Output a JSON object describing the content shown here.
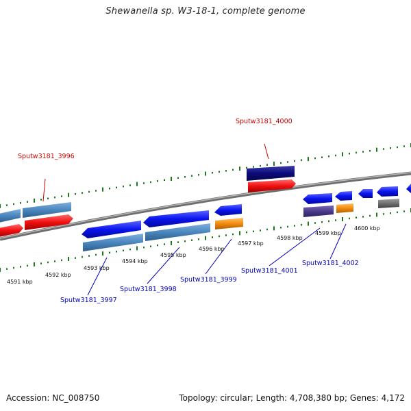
{
  "title": "Shewanella sp. W3-18-1, complete genome",
  "accession": "Accession: NC_008750",
  "topology": "Topology: circular; Length: 4,708,380 bp; Genes: 4,172",
  "kbp_labels": [
    "4591 kbp",
    "4592 kbp",
    "4593 kbp",
    "4594 kbp",
    "4595 kbp",
    "4596 kbp",
    "4597 kbp",
    "4598 kbp",
    "4599 kbp",
    "4600 kbp"
  ],
  "gene_labels": {
    "g3996": "Sputw3181_3996",
    "g3997": "Sputw3181_3997",
    "g3998": "Sputw3181_3998",
    "g3999": "Sputw3181_3999",
    "g4000": "Sputw3181_4000",
    "g4001": "Sputw3181_4001",
    "g4002": "Sputw3181_4002"
  },
  "colors": {
    "backbone": "#8a8a8a",
    "tick": "#1a7a1a",
    "blue": "#0a14ee",
    "steelblue": "#4a86bd",
    "red": "#f01010",
    "navy": "#0b0b7a",
    "orange": "#f28a10",
    "purple": "#4a3a8a",
    "gray": "#6e6e6e",
    "label_red": "#cc0000",
    "label_blue": "#0000bb"
  }
}
